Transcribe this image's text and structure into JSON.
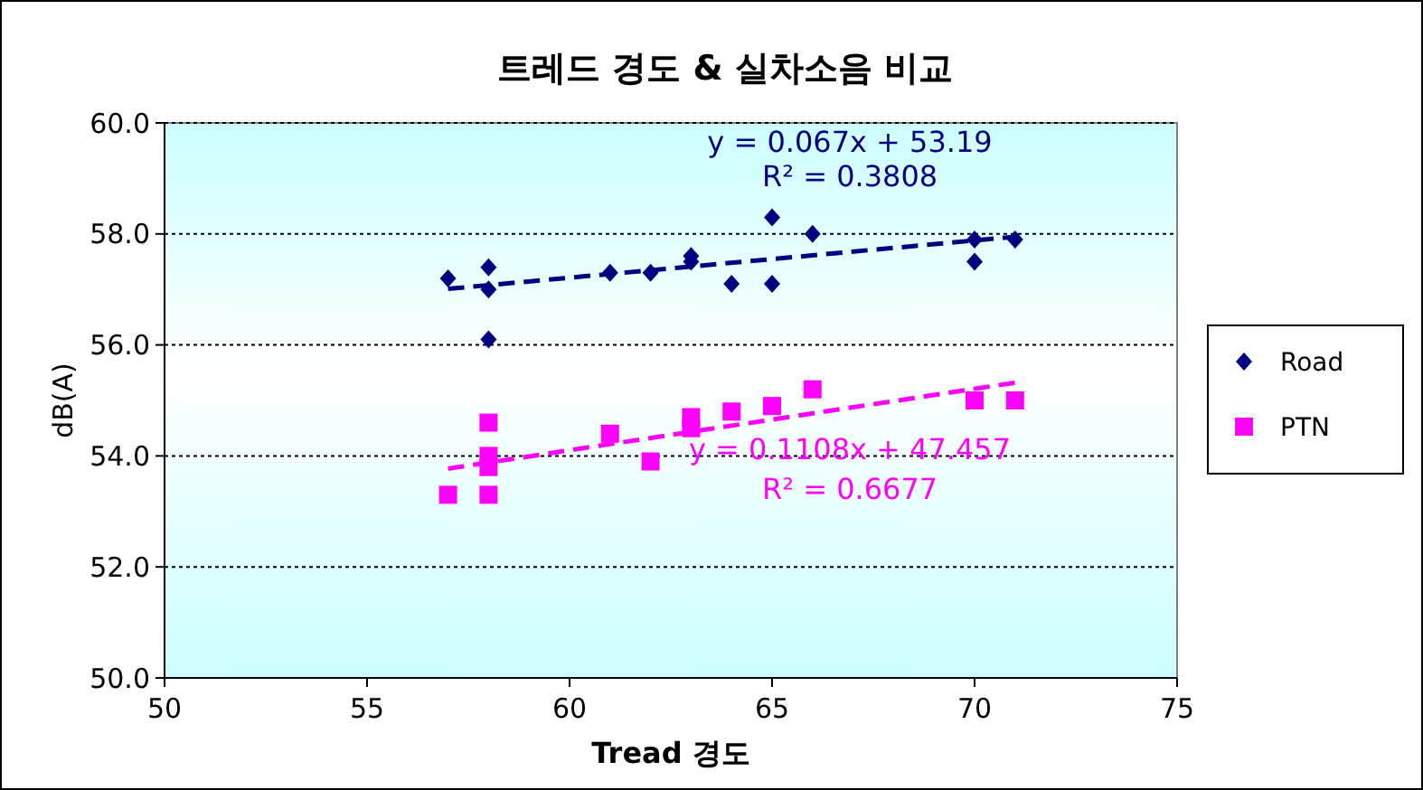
{
  "chart_data": {
    "type": "scatter",
    "title": "트레드 경도 & 실차소음 비교",
    "xlabel": "Tread 경도",
    "ylabel": "dB(A)",
    "xlim": [
      50,
      75
    ],
    "xticks": [
      50,
      55,
      60,
      65,
      70,
      75
    ],
    "ylim": [
      50,
      60
    ],
    "yticks": [
      {
        "value": 50,
        "label": "50.0"
      },
      {
        "value": 52,
        "label": "52.0"
      },
      {
        "value": 54,
        "label": "54.0"
      },
      {
        "value": 56,
        "label": "56.0"
      },
      {
        "value": 58,
        "label": "58.0"
      },
      {
        "value": 60,
        "label": "60.0"
      }
    ],
    "grid": "y",
    "legend": "right",
    "series": [
      {
        "name": "Road",
        "color": "#000080",
        "marker": "diamond",
        "x": [
          57,
          58,
          58,
          58,
          61,
          62,
          63,
          63,
          64,
          65,
          65,
          66,
          70,
          70,
          71
        ],
        "values": [
          57.2,
          57.4,
          57.0,
          56.1,
          57.3,
          57.3,
          57.6,
          57.5,
          57.1,
          58.3,
          57.1,
          58.0,
          57.9,
          57.5,
          57.9
        ]
      },
      {
        "name": "PTN",
        "color": "#ff00ff",
        "marker": "square",
        "x": [
          57,
          58,
          58,
          58,
          58,
          61,
          62,
          63,
          63,
          64,
          65,
          66,
          70,
          71
        ],
        "values": [
          53.3,
          54.6,
          54.0,
          53.8,
          53.3,
          54.4,
          53.9,
          54.7,
          54.5,
          54.8,
          54.9,
          55.2,
          55.0,
          55.0
        ]
      },
      {
        "type": "line",
        "color": "#000080",
        "line_style": "dashed",
        "x": [
          57,
          71
        ],
        "values": [
          57.01,
          57.95
        ]
      },
      {
        "type": "line",
        "color": "#ff00ff",
        "line_style": "dashed",
        "x": [
          57,
          71
        ],
        "values": [
          53.77,
          55.32
        ]
      }
    ],
    "annotations": [
      "y = 0.067x + 53.19",
      "R² = 0.3808",
      "y = 0.1108x + 47.457",
      "R² = 0.6677"
    ]
  }
}
